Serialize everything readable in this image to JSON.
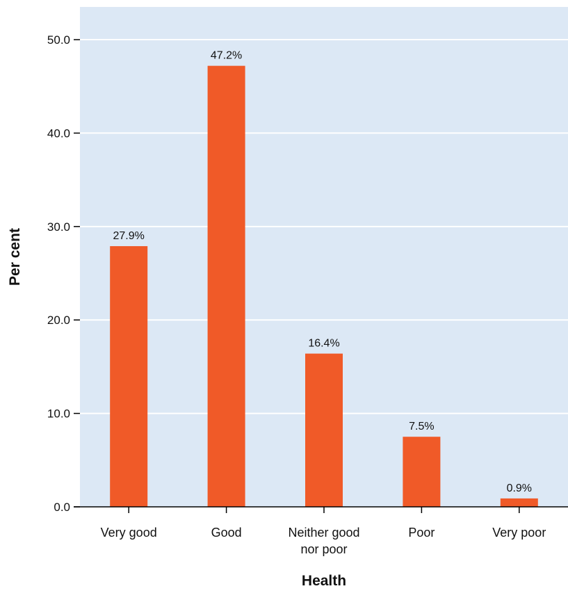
{
  "chart_data": {
    "type": "bar",
    "title": "",
    "xlabel": "Health",
    "ylabel": "Per cent",
    "categories": [
      [
        "Very good"
      ],
      [
        "Good"
      ],
      [
        "Neither good",
        "nor poor"
      ],
      [
        "Poor"
      ],
      [
        "Very poor"
      ]
    ],
    "values": [
      27.9,
      47.2,
      16.4,
      7.5,
      0.9
    ],
    "value_labels": [
      "27.9%",
      "47.2%",
      "16.4%",
      "7.5%",
      "0.9%"
    ],
    "yticks": [
      0,
      10,
      20,
      30,
      40,
      50
    ],
    "ytick_labels": [
      "0.0",
      "10.0",
      "20.0",
      "30.0",
      "40.0",
      "50.0"
    ],
    "ylim": [
      0,
      53.5
    ],
    "grid": true,
    "legend": "none",
    "colors": {
      "bar": "#f05a28",
      "plot_background": "#dce8f5",
      "grid": "#ffffff",
      "axis": "#000000"
    }
  }
}
